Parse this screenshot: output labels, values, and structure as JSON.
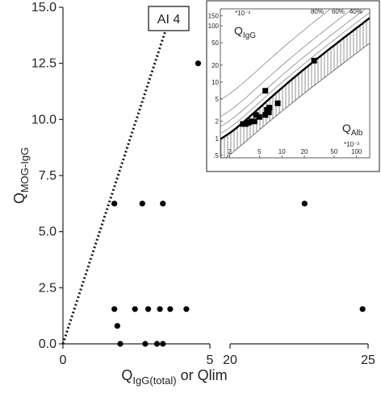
{
  "chart_data": [
    {
      "type": "scatter",
      "ylabel": "Q_MOG-IgG",
      "ylabel_main": "Q",
      "ylabel_sub": "MOG-IgG",
      "xlabel_main": "Q",
      "xlabel_sub": "IgG(total)",
      "xlabel_suffix": " or Qlim",
      "ylim": [
        0,
        15
      ],
      "yticks": [
        "0.0",
        "2.5",
        "5.0",
        "7.5",
        "10.0",
        "12.5",
        "15.0"
      ],
      "x_segments": [
        {
          "range": [
            0,
            5
          ],
          "tick_labels": [
            "0",
            "5"
          ]
        },
        {
          "range": [
            20,
            25
          ],
          "tick_labels": [
            "20",
            "25"
          ]
        }
      ],
      "annotation": {
        "text": "AI 4",
        "line_slope": 4,
        "line_style": "dotted"
      },
      "points": [
        {
          "x": 4.6,
          "y": 12.5
        },
        {
          "x": 1.75,
          "y": 6.25
        },
        {
          "x": 2.7,
          "y": 6.25
        },
        {
          "x": 3.4,
          "y": 6.25
        },
        {
          "x": 22.7,
          "y": 6.25
        },
        {
          "x": 1.75,
          "y": 1.55
        },
        {
          "x": 2.45,
          "y": 1.55
        },
        {
          "x": 2.9,
          "y": 1.55
        },
        {
          "x": 3.3,
          "y": 1.55
        },
        {
          "x": 3.65,
          "y": 1.55
        },
        {
          "x": 4.2,
          "y": 1.55
        },
        {
          "x": 24.8,
          "y": 1.55
        },
        {
          "x": 1.85,
          "y": 0.8
        },
        {
          "x": 1.95,
          "y": 0.0
        },
        {
          "x": 2.8,
          "y": 0.0
        },
        {
          "x": 3.2,
          "y": 0.0
        },
        {
          "x": 3.4,
          "y": 0.0
        }
      ]
    },
    {
      "type": "scatter",
      "name": "Reibergram inset",
      "xlabel_main": "Q",
      "xlabel_sub": "Alb",
      "xlabel_scale": "*10⁻³",
      "ylabel_main": "Q",
      "ylabel_sub": "IgG",
      "ylabel_scale": "*10⁻³",
      "xscale": "log",
      "yscale": "log",
      "xlim": [
        1.5,
        150
      ],
      "ylim": [
        0.45,
        200
      ],
      "xticks": [
        {
          "v": 2,
          "label": "2"
        },
        {
          "v": 5,
          "label": "5"
        },
        {
          "v": 10,
          "label": "10"
        },
        {
          "v": 20,
          "label": "20"
        },
        {
          "v": 50,
          "label": "50"
        },
        {
          "v": 100,
          "label": "100"
        }
      ],
      "yticks": [
        {
          "v": 0.5,
          "label": ".5"
        },
        {
          "v": 1,
          "label": "1"
        },
        {
          "v": 2,
          "label": "2"
        },
        {
          "v": 5,
          "label": "5"
        },
        {
          "v": 10,
          "label": "10"
        },
        {
          "v": 20,
          "label": "20"
        },
        {
          "v": 50,
          "label": "50"
        },
        {
          "v": 100,
          "label": "100"
        },
        {
          "v": 150,
          "label": "150"
        }
      ],
      "percent_lines": [
        {
          "label": "80%"
        },
        {
          "label": "60%"
        },
        {
          "label": "40%"
        }
      ],
      "points": [
        {
          "x": 3.0,
          "y": 1.8
        },
        {
          "x": 3.3,
          "y": 1.8
        },
        {
          "x": 3.6,
          "y": 1.9
        },
        {
          "x": 3.9,
          "y": 2.0
        },
        {
          "x": 4.3,
          "y": 2.0
        },
        {
          "x": 4.5,
          "y": 2.6
        },
        {
          "x": 5.0,
          "y": 2.4
        },
        {
          "x": 6.0,
          "y": 2.6
        },
        {
          "x": 6.3,
          "y": 3.2
        },
        {
          "x": 6.8,
          "y": 3.5
        },
        {
          "x": 6.7,
          "y": 2.9
        },
        {
          "x": 6.0,
          "y": 7.0
        },
        {
          "x": 8.8,
          "y": 4.2
        },
        {
          "x": 27,
          "y": 24
        }
      ]
    }
  ]
}
